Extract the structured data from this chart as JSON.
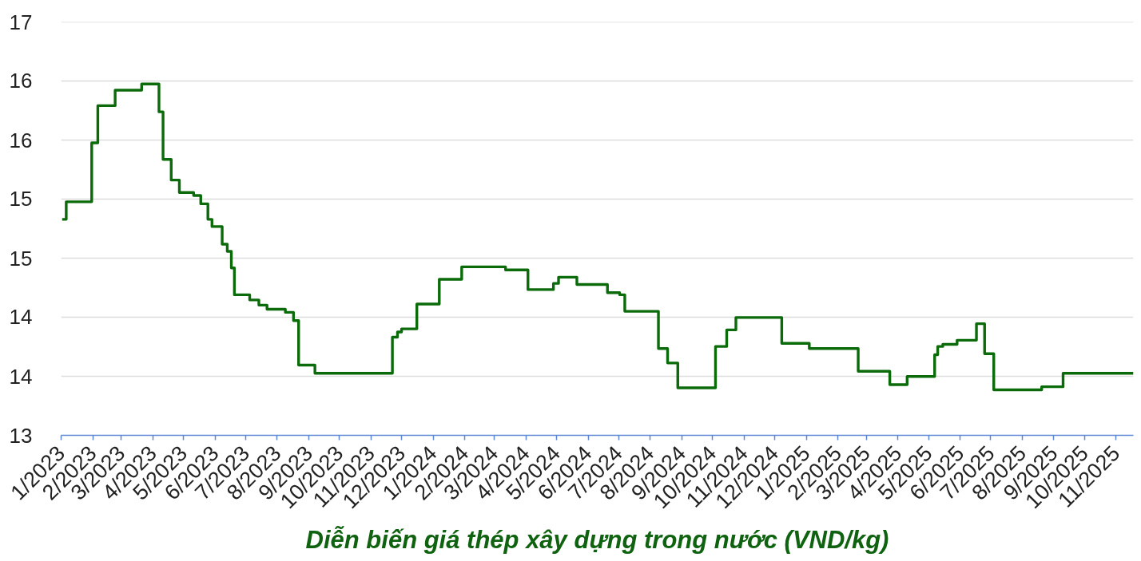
{
  "chart_data": {
    "type": "step",
    "title": "Diễn biến giá thép xây dựng trong nước (VND/kg)",
    "x": [
      "2023-01-02",
      "2023-01-06",
      "2023-01-31",
      "2023-02-06",
      "2023-02-23",
      "2023-03-21",
      "2023-04-07",
      "2023-04-11",
      "2023-04-19",
      "2023-04-27",
      "2023-05-11",
      "2023-05-18",
      "2023-05-25",
      "2023-05-29",
      "2023-06-08",
      "2023-06-13",
      "2023-06-17",
      "2023-06-20",
      "2023-07-05",
      "2023-07-14",
      "2023-07-22",
      "2023-08-09",
      "2023-08-17",
      "2023-08-22",
      "2023-09-07",
      "2023-11-22",
      "2023-11-27",
      "2023-12-01",
      "2023-12-16",
      "2024-01-07",
      "2024-01-29",
      "2024-03-12",
      "2024-04-03",
      "2024-04-28",
      "2024-05-03",
      "2024-05-21",
      "2024-06-20",
      "2024-07-02",
      "2024-07-07",
      "2024-08-09",
      "2024-08-18",
      "2024-08-28",
      "2024-10-04",
      "2024-10-15",
      "2024-10-24",
      "2024-12-08",
      "2025-01-04",
      "2025-02-21",
      "2025-03-24",
      "2025-04-10",
      "2025-05-07",
      "2025-05-10",
      "2025-05-15",
      "2025-05-29",
      "2025-06-17",
      "2025-06-25",
      "2025-07-04",
      "2025-08-20",
      "2025-09-10",
      "2025-11-18"
    ],
    "series": [
      {
        "color": "#0b6b0b",
        "values": [
          15.09,
          15.26,
          15.83,
          16.19,
          16.34,
          16.4,
          16.13,
          15.67,
          15.47,
          15.35,
          15.32,
          15.24,
          15.09,
          15.02,
          14.85,
          14.78,
          14.62,
          14.36,
          14.31,
          14.26,
          14.22,
          14.19,
          14.11,
          13.68,
          13.6,
          13.95,
          14.0,
          14.03,
          14.27,
          14.51,
          14.63,
          14.6,
          14.41,
          14.47,
          14.53,
          14.46,
          14.38,
          14.36,
          14.2,
          13.84,
          13.7,
          13.46,
          13.86,
          14.02,
          14.14,
          13.89,
          13.84,
          13.62,
          13.49,
          13.57,
          13.78,
          13.86,
          13.88,
          13.92,
          14.08,
          13.79,
          13.44,
          13.47,
          13.6,
          13.6
        ]
      }
    ],
    "xlim": [
      "2023-01-01",
      "2025-11-18"
    ],
    "xticks": [
      {
        "value": "2023-01",
        "label": "1/2023"
      },
      {
        "value": "2023-02",
        "label": "2/2023"
      },
      {
        "value": "2023-03",
        "label": "3/2023"
      },
      {
        "value": "2023-04",
        "label": "4/2023"
      },
      {
        "value": "2023-05",
        "label": "5/2023"
      },
      {
        "value": "2023-06",
        "label": "6/2023"
      },
      {
        "value": "2023-07",
        "label": "7/2023"
      },
      {
        "value": "2023-08",
        "label": "8/2023"
      },
      {
        "value": "2023-09",
        "label": "9/2023"
      },
      {
        "value": "2023-10",
        "label": "10/2023"
      },
      {
        "value": "2023-11",
        "label": "11/2023"
      },
      {
        "value": "2023-12",
        "label": "12/2023"
      },
      {
        "value": "2024-01",
        "label": "1/2024"
      },
      {
        "value": "2024-02",
        "label": "2/2024"
      },
      {
        "value": "2024-03",
        "label": "3/2024"
      },
      {
        "value": "2024-04",
        "label": "4/2024"
      },
      {
        "value": "2024-05",
        "label": "5/2024"
      },
      {
        "value": "2024-06",
        "label": "6/2024"
      },
      {
        "value": "2024-07",
        "label": "7/2024"
      },
      {
        "value": "2024-08",
        "label": "8/2024"
      },
      {
        "value": "2024-09",
        "label": "9/2024"
      },
      {
        "value": "2024-10",
        "label": "10/2024"
      },
      {
        "value": "2024-11",
        "label": "11/2024"
      },
      {
        "value": "2024-12",
        "label": "12/2024"
      },
      {
        "value": "2025-01",
        "label": "1/2025"
      },
      {
        "value": "2025-02",
        "label": "2/2025"
      },
      {
        "value": "2025-03",
        "label": "3/2025"
      },
      {
        "value": "2025-04",
        "label": "4/2025"
      },
      {
        "value": "2025-05",
        "label": "5/2025"
      },
      {
        "value": "2025-06",
        "label": "6/2025"
      },
      {
        "value": "2025-07",
        "label": "7/2025"
      },
      {
        "value": "2025-08",
        "label": "8/2025"
      },
      {
        "value": "2025-09",
        "label": "9/2025"
      },
      {
        "value": "2025-10",
        "label": "10/2025"
      },
      {
        "value": "2025-11",
        "label": "11/2025"
      }
    ],
    "ylim": [
      13,
      17
    ],
    "yticks": [
      13,
      {
        "value": 13.571,
        "label": "14"
      },
      {
        "value": 14.143,
        "label": "14"
      },
      {
        "value": 14.714,
        "label": "15"
      },
      {
        "value": 15.286,
        "label": "15"
      },
      {
        "value": 15.857,
        "label": "16"
      },
      {
        "value": 16.429,
        "label": "16"
      },
      17
    ],
    "grid": "y",
    "line_style": "solid"
  }
}
